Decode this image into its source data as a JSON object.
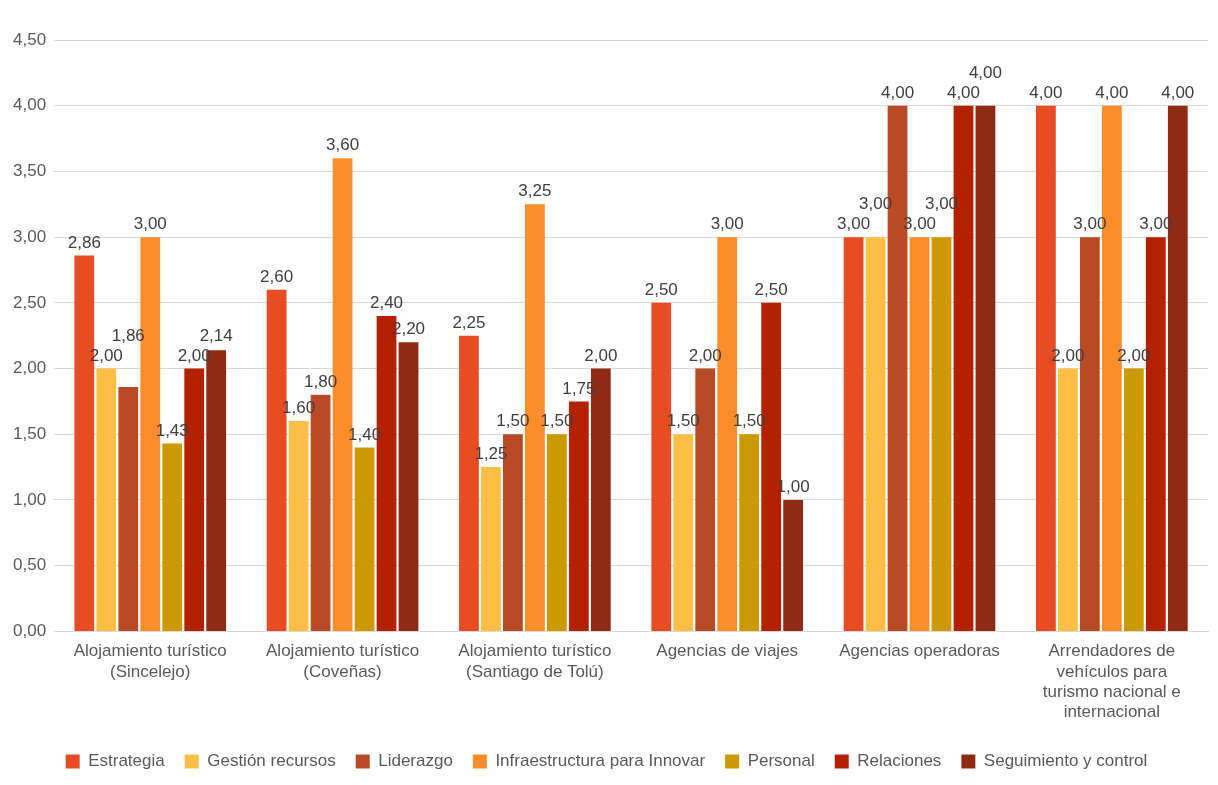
{
  "chart_data": {
    "type": "bar",
    "categories": [
      "Alojamiento turístico (Sincelejo)",
      "Alojamiento turístico (Coveñas)",
      "Alojamiento turístico (Santiago de Tolú)",
      "Agencias de viajes",
      "Agencias operadoras",
      "Arrendadores de vehículos para turismo nacional e internacional"
    ],
    "series": [
      {
        "name": "Estrategia",
        "color": "#e84c22",
        "values": [
          2.86,
          2.6,
          2.25,
          2.5,
          3.0,
          4.0
        ],
        "value_labels": [
          "2,86",
          "2,60",
          "2,25",
          "2,50",
          "3,00",
          "4,00"
        ]
      },
      {
        "name": "Gestión recursos",
        "color": "#ffbf47",
        "values": [
          2.0,
          1.6,
          1.25,
          1.5,
          3.0,
          2.0
        ],
        "value_labels": [
          "2,00",
          "1,60",
          "1,25",
          "1,50",
          "3,00",
          "2,00"
        ]
      },
      {
        "name": "Liderazgo",
        "color": "#b84a26",
        "values": [
          1.86,
          1.8,
          1.5,
          2.0,
          4.0,
          3.0
        ],
        "value_labels": [
          "1,86",
          "1,80",
          "1,50",
          "2,00",
          "4,00",
          "3,00"
        ]
      },
      {
        "name": "Infraestructura para Innovar",
        "color": "#fd8c2a",
        "values": [
          3.0,
          3.6,
          3.25,
          3.0,
          3.0,
          4.0
        ],
        "value_labels": [
          "3,00",
          "3,60",
          "3,25",
          "3,00",
          "3,00",
          "4,00"
        ]
      },
      {
        "name": "Personal",
        "color": "#cc9900",
        "values": [
          1.43,
          1.4,
          1.5,
          1.5,
          3.0,
          2.0
        ],
        "value_labels": [
          "1,43",
          "1,40",
          "1,50",
          "1,50",
          "3,00",
          "2,00"
        ]
      },
      {
        "name": "Relaciones",
        "color": "#b32100",
        "values": [
          2.0,
          2.4,
          1.75,
          2.5,
          4.0,
          3.0
        ],
        "value_labels": [
          "2,00",
          "2,40",
          "1,75",
          "2,50",
          "4,00",
          "3,00"
        ]
      },
      {
        "name": "Seguimiento y control",
        "color": "#8f2b14",
        "values": [
          2.14,
          2.2,
          2.0,
          1.0,
          4.0,
          4.0
        ],
        "value_labels": [
          "2,14",
          "2,20",
          "2,00",
          "1,00",
          "4,00",
          "4,00"
        ]
      }
    ],
    "ylim": [
      0,
      4.5
    ],
    "yticks": [
      {
        "value": 0,
        "label": "0,00"
      },
      {
        "value": 0.5,
        "label": "0,50"
      },
      {
        "value": 1,
        "label": "1,00"
      },
      {
        "value": 1.5,
        "label": "1,50"
      },
      {
        "value": 2,
        "label": "2,00"
      },
      {
        "value": 2.5,
        "label": "2,50"
      },
      {
        "value": 3,
        "label": "3,00"
      },
      {
        "value": 3.5,
        "label": "3,50"
      },
      {
        "value": 4,
        "label": "4,00"
      },
      {
        "value": 4.5,
        "label": "4,50"
      }
    ],
    "grid": "y",
    "legend": "bottom"
  }
}
